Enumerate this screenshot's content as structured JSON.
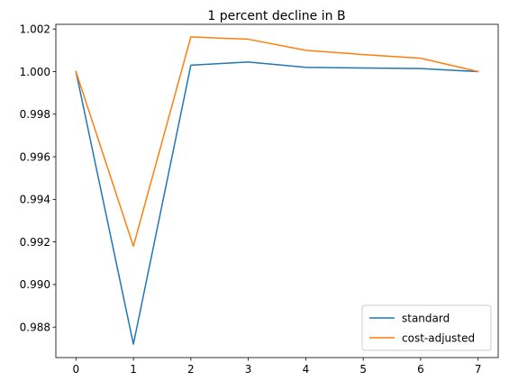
{
  "chart_data": {
    "type": "line",
    "title": "1 percent decline in B",
    "xlabel": "",
    "ylabel": "",
    "x": [
      0,
      1,
      2,
      3,
      4,
      5,
      6,
      7
    ],
    "xticks": [
      0,
      1,
      2,
      3,
      4,
      5,
      6,
      7
    ],
    "xlim": [
      -0.35,
      7.35
    ],
    "yticks": [
      0.988,
      0.99,
      0.992,
      0.994,
      0.996,
      0.998,
      1.0,
      1.002
    ],
    "ytick_labels": [
      "0.988",
      "0.990",
      "0.992",
      "0.994",
      "0.996",
      "0.998",
      "1.000",
      "1.002"
    ],
    "ylim": [
      0.98657,
      1.00222
    ],
    "grid": false,
    "legend_position": "lower-right",
    "series": [
      {
        "name": "standard",
        "color": "#1f77b4",
        "values": [
          1.0,
          0.9872,
          1.0003,
          1.00045,
          1.0002,
          1.00017,
          1.00014,
          1.0
        ]
      },
      {
        "name": "cost-adjusted",
        "color": "#ff7f0e",
        "values": [
          1.0,
          0.9918,
          1.00163,
          1.00152,
          1.001,
          1.0008,
          1.00063,
          1.0
        ]
      }
    ]
  }
}
